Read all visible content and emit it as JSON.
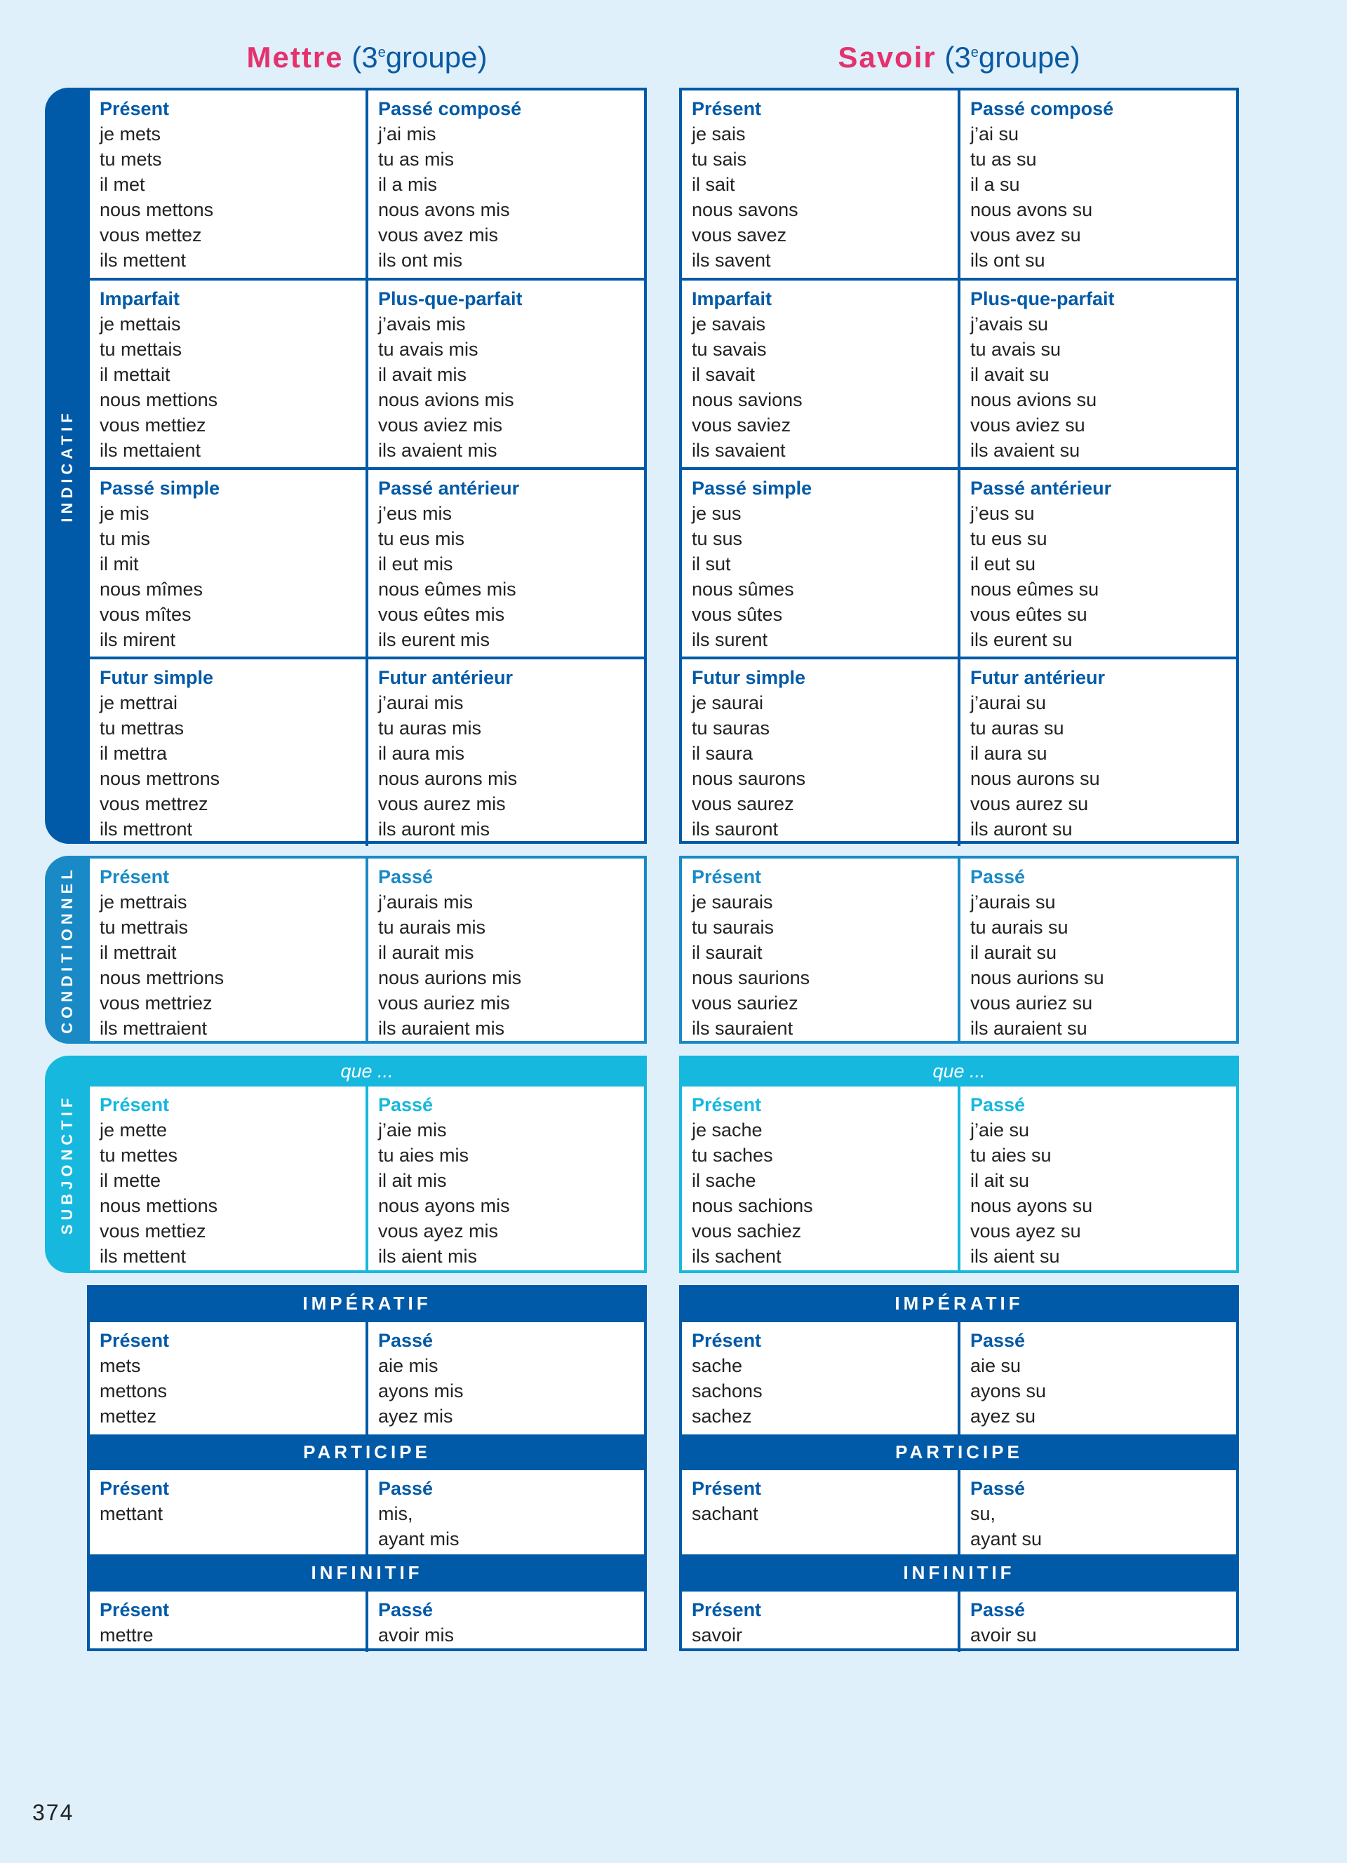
{
  "colors": {
    "dark_blue": "#005aa7",
    "conditionnel_blue": "#1a8ac6",
    "subjonctif_cyan": "#16b8de",
    "title_pink": "#e4326e",
    "background": "#dff0fa"
  },
  "moods": {
    "indicatif": "INDICATIF",
    "conditionnel": "CONDITIONNEL",
    "subjonctif": "SUBJONCTIF",
    "que": "que ...",
    "imperatif": "IMPÉRATIF",
    "participe": "PARTICIPE",
    "infinitif": "INFINITIF"
  },
  "page_number": "374",
  "verbs": [
    {
      "name": "Mettre",
      "group_open": "(3",
      "group_sup": "e",
      "group_close": "groupe)",
      "indicatif": [
        [
          {
            "tense": "Présent",
            "forms": [
              "je mets",
              "tu mets",
              "il met",
              "nous mettons",
              "vous mettez",
              "ils mettent"
            ]
          },
          {
            "tense": "Passé composé",
            "forms": [
              "j’ai mis",
              "tu as mis",
              "il a mis",
              "nous avons mis",
              "vous avez mis",
              "ils ont mis"
            ]
          }
        ],
        [
          {
            "tense": "Imparfait",
            "forms": [
              "je mettais",
              "tu mettais",
              "il mettait",
              "nous mettions",
              "vous mettiez",
              "ils mettaient"
            ]
          },
          {
            "tense": "Plus-que-parfait",
            "forms": [
              "j’avais mis",
              "tu avais mis",
              "il avait mis",
              "nous avions mis",
              "vous aviez mis",
              "ils avaient mis"
            ]
          }
        ],
        [
          {
            "tense": "Passé simple",
            "forms": [
              "je mis",
              "tu mis",
              "il mit",
              "nous mîmes",
              "vous mîtes",
              "ils mirent"
            ]
          },
          {
            "tense": "Passé antérieur",
            "forms": [
              "j’eus mis",
              "tu eus mis",
              "il eut mis",
              "nous eûmes mis",
              "vous eûtes mis",
              "ils eurent mis"
            ]
          }
        ],
        [
          {
            "tense": "Futur simple",
            "forms": [
              "je mettrai",
              "tu mettras",
              "il mettra",
              "nous mettrons",
              "vous mettrez",
              "ils mettront"
            ]
          },
          {
            "tense": "Futur antérieur",
            "forms": [
              "j’aurai mis",
              "tu auras mis",
              "il aura mis",
              "nous aurons mis",
              "vous aurez mis",
              "ils auront mis"
            ]
          }
        ]
      ],
      "conditionnel": [
        {
          "tense": "Présent",
          "forms": [
            "je mettrais",
            "tu mettrais",
            "il mettrait",
            "nous mettrions",
            "vous mettriez",
            "ils mettraient"
          ]
        },
        {
          "tense": "Passé",
          "forms": [
            "j’aurais mis",
            "tu aurais mis",
            "il aurait mis",
            "nous aurions mis",
            "vous auriez mis",
            "ils auraient mis"
          ]
        }
      ],
      "subjonctif": [
        {
          "tense": "Présent",
          "forms": [
            "je mette",
            "tu mettes",
            "il mette",
            "nous mettions",
            "vous mettiez",
            "ils mettent"
          ]
        },
        {
          "tense": "Passé",
          "forms": [
            "j’aie mis",
            "tu aies mis",
            "il ait mis",
            "nous ayons mis",
            "vous ayez mis",
            "ils aient mis"
          ]
        }
      ],
      "imperatif": [
        {
          "tense": "Présent",
          "forms": [
            "mets",
            "mettons",
            "mettez"
          ]
        },
        {
          "tense": "Passé",
          "forms": [
            "aie mis",
            "ayons mis",
            "ayez mis"
          ]
        }
      ],
      "participe": [
        {
          "tense": "Présent",
          "forms": [
            "mettant"
          ]
        },
        {
          "tense": "Passé",
          "forms": [
            "mis,",
            "ayant mis"
          ]
        }
      ],
      "infinitif": [
        {
          "tense": "Présent",
          "forms": [
            "mettre"
          ]
        },
        {
          "tense": "Passé",
          "forms": [
            "avoir mis"
          ]
        }
      ]
    },
    {
      "name": "Savoir",
      "group_open": "(3",
      "group_sup": "e",
      "group_close": "groupe)",
      "indicatif": [
        [
          {
            "tense": "Présent",
            "forms": [
              "je sais",
              "tu sais",
              "il sait",
              "nous savons",
              "vous savez",
              "ils savent"
            ]
          },
          {
            "tense": "Passé composé",
            "forms": [
              "j’ai su",
              "tu as su",
              "il a su",
              "nous avons su",
              "vous avez su",
              "ils ont su"
            ]
          }
        ],
        [
          {
            "tense": "Imparfait",
            "forms": [
              "je savais",
              "tu savais",
              "il savait",
              "nous savions",
              "vous saviez",
              "ils savaient"
            ]
          },
          {
            "tense": "Plus-que-parfait",
            "forms": [
              "j’avais su",
              "tu avais su",
              "il avait su",
              "nous avions su",
              "vous aviez su",
              "ils avaient su"
            ]
          }
        ],
        [
          {
            "tense": "Passé simple",
            "forms": [
              "je sus",
              "tu sus",
              "il sut",
              "nous sûmes",
              "vous sûtes",
              "ils surent"
            ]
          },
          {
            "tense": "Passé antérieur",
            "forms": [
              "j’eus su",
              "tu eus su",
              "il eut su",
              "nous eûmes su",
              "vous eûtes su",
              "ils eurent su"
            ]
          }
        ],
        [
          {
            "tense": "Futur simple",
            "forms": [
              "je saurai",
              "tu sauras",
              "il saura",
              "nous saurons",
              "vous saurez",
              "ils sauront"
            ]
          },
          {
            "tense": "Futur antérieur",
            "forms": [
              "j’aurai su",
              "tu auras su",
              "il aura su",
              "nous aurons su",
              "vous aurez su",
              "ils auront su"
            ]
          }
        ]
      ],
      "conditionnel": [
        {
          "tense": "Présent",
          "forms": [
            "je saurais",
            "tu saurais",
            "il saurait",
            "nous saurions",
            "vous sauriez",
            "ils sauraient"
          ]
        },
        {
          "tense": "Passé",
          "forms": [
            "j’aurais su",
            "tu aurais su",
            "il aurait su",
            "nous aurions su",
            "vous auriez su",
            "ils auraient su"
          ]
        }
      ],
      "subjonctif": [
        {
          "tense": "Présent",
          "forms": [
            "je sache",
            "tu saches",
            "il sache",
            "nous sachions",
            "vous sachiez",
            "ils sachent"
          ]
        },
        {
          "tense": "Passé",
          "forms": [
            "j’aie su",
            "tu aies su",
            "il ait su",
            "nous ayons su",
            "vous ayez su",
            "ils aient su"
          ]
        }
      ],
      "imperatif": [
        {
          "tense": "Présent",
          "forms": [
            "sache",
            "sachons",
            "sachez"
          ]
        },
        {
          "tense": "Passé",
          "forms": [
            "aie su",
            "ayons su",
            "ayez su"
          ]
        }
      ],
      "participe": [
        {
          "tense": "Présent",
          "forms": [
            "sachant"
          ]
        },
        {
          "tense": "Passé",
          "forms": [
            "su,",
            "ayant su"
          ]
        }
      ],
      "infinitif": [
        {
          "tense": "Présent",
          "forms": [
            "savoir"
          ]
        },
        {
          "tense": "Passé",
          "forms": [
            "avoir su"
          ]
        }
      ]
    }
  ]
}
